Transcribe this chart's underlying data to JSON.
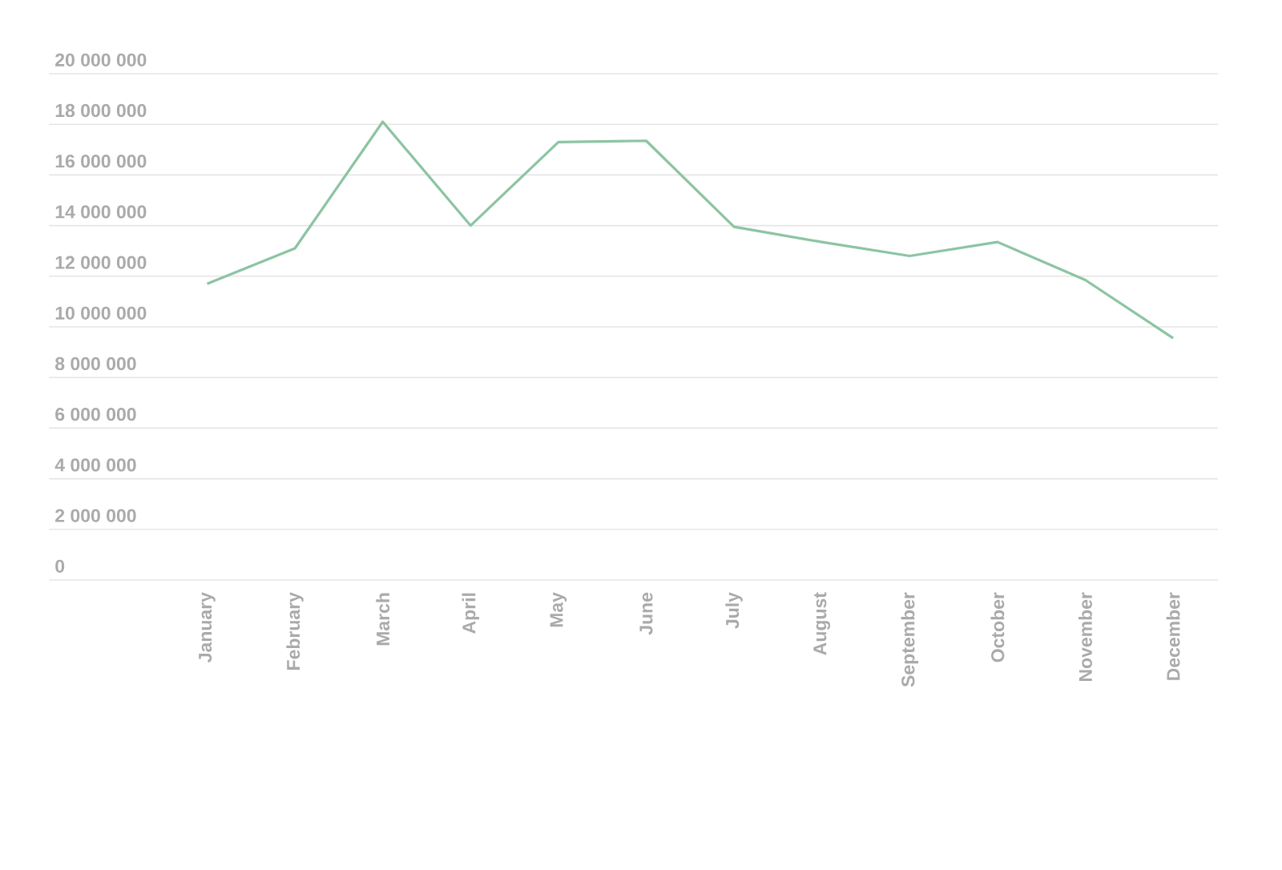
{
  "chart_data": {
    "type": "line",
    "categories": [
      "January",
      "February",
      "March",
      "April",
      "May",
      "June",
      "July",
      "August",
      "September",
      "October",
      "November",
      "December"
    ],
    "series": [
      {
        "color": "#8cc4a3",
        "values": [
          11700000,
          13100000,
          18100000,
          14000000,
          17300000,
          17350000,
          13950000,
          13350000,
          12800000,
          13350000,
          11850000,
          9550000
        ]
      }
    ],
    "ylim": [
      0,
      20000000
    ],
    "yticks": [
      {
        "value": 0,
        "label": "0"
      },
      {
        "value": 2000000,
        "label": "2 000 000"
      },
      {
        "value": 4000000,
        "label": "4 000 000"
      },
      {
        "value": 6000000,
        "label": "6 000 000"
      },
      {
        "value": 8000000,
        "label": "8 000 000"
      },
      {
        "value": 10000000,
        "label": "10 000 000"
      },
      {
        "value": 12000000,
        "label": "12 000 000"
      },
      {
        "value": 14000000,
        "label": "14 000 000"
      },
      {
        "value": 16000000,
        "label": "16 000 000"
      },
      {
        "value": 18000000,
        "label": "18 000 000"
      },
      {
        "value": 20000000,
        "label": "20 000 000"
      }
    ],
    "grid": "y"
  }
}
